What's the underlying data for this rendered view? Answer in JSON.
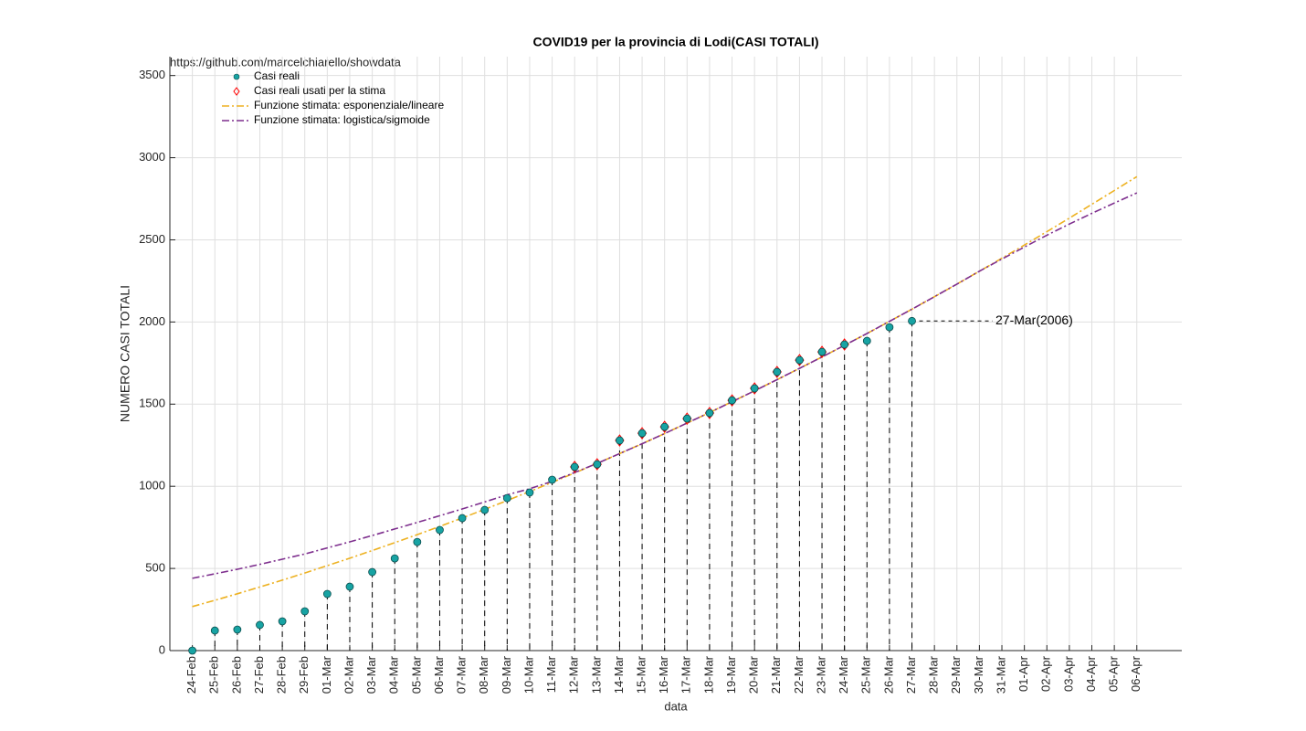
{
  "chart_data": {
    "type": "line",
    "title": "COVID19 per la provincia di Lodi(CASI TOTALI)",
    "source_note": "https://github.com/marcelchiarello/showdata",
    "xlabel": "data",
    "ylabel": "NUMERO CASI TOTALI",
    "categories": [
      "24-Feb",
      "25-Feb",
      "26-Feb",
      "27-Feb",
      "28-Feb",
      "29-Feb",
      "01-Mar",
      "02-Mar",
      "03-Mar",
      "04-Mar",
      "05-Mar",
      "06-Mar",
      "07-Mar",
      "08-Mar",
      "09-Mar",
      "10-Mar",
      "11-Mar",
      "12-Mar",
      "13-Mar",
      "14-Mar",
      "15-Mar",
      "16-Mar",
      "17-Mar",
      "18-Mar",
      "19-Mar",
      "20-Mar",
      "21-Mar",
      "22-Mar",
      "23-Mar",
      "24-Mar",
      "25-Mar",
      "26-Mar",
      "27-Mar",
      "28-Mar",
      "29-Mar",
      "30-Mar",
      "31-Mar",
      "01-Apr",
      "02-Apr",
      "03-Apr",
      "04-Apr",
      "05-Apr",
      "06-Apr"
    ],
    "series": [
      {
        "name": "Casi reali",
        "color": "#17a3a3",
        "values": [
          0,
          122,
          128,
          156,
          178,
          239,
          345,
          389,
          478,
          561,
          661,
          734,
          806,
          856,
          928,
          962,
          1040,
          1118,
          1134,
          1279,
          1323,
          1362,
          1412,
          1446,
          1523,
          1596,
          1696,
          1768,
          1818,
          1863,
          1885,
          1968,
          2006,
          null,
          null,
          null,
          null,
          null,
          null,
          null,
          null,
          null,
          null
        ]
      },
      {
        "name": "Casi reali usati per la stima",
        "color": "#ff0000",
        "values": [
          null,
          null,
          null,
          null,
          null,
          null,
          null,
          null,
          null,
          null,
          null,
          null,
          null,
          null,
          null,
          null,
          null,
          1118,
          1134,
          1279,
          1323,
          1362,
          1412,
          1446,
          1523,
          1596,
          1696,
          1768,
          1818,
          1863,
          null,
          null,
          null,
          null,
          null,
          null,
          null,
          null,
          null,
          null,
          null,
          null,
          null
        ]
      },
      {
        "name": "Funzione stimata: esponenziale/lineare",
        "color": "#edb120",
        "values": [
          268,
          306,
          346,
          387,
          429,
          472,
          517,
          562,
          609,
          657,
          706,
          756,
          807,
          860,
          913,
          968,
          1024,
          1081,
          1139,
          1199,
          1259,
          1321,
          1385,
          1449,
          1515,
          1581,
          1649,
          1718,
          1787,
          1858,
          1930,
          2004,
          2078,
          2154,
          2231,
          2309,
          2388,
          2468,
          2550,
          2632,
          2716,
          2800,
          2885
        ]
      },
      {
        "name": "Funzione stimata: logistica/sigmoide",
        "color": "#7e2f8e",
        "values": [
          440,
          467,
          495,
          525,
          556,
          588,
          625,
          662,
          700,
          740,
          780,
          821,
          862,
          905,
          948,
          985,
          1030,
          1084,
          1139,
          1199,
          1259,
          1321,
          1385,
          1449,
          1515,
          1581,
          1649,
          1718,
          1787,
          1858,
          1930,
          2004,
          2078,
          2154,
          2231,
          2309,
          2383,
          2456,
          2528,
          2596,
          2661,
          2724,
          2786
        ]
      }
    ],
    "annotation": "27-Mar(2006)",
    "ylim": [
      0,
      3615
    ],
    "yticks": [
      0,
      500,
      1000,
      1500,
      2000,
      2500,
      3000,
      3500
    ],
    "grid": true,
    "legend": "upper left"
  }
}
